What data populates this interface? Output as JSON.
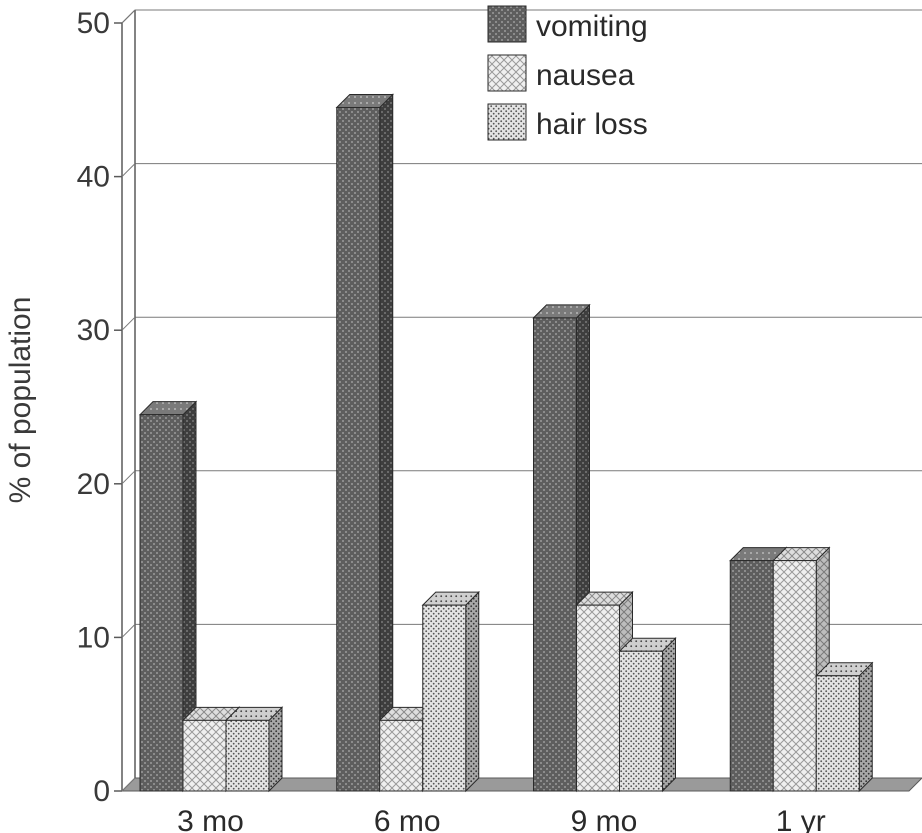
{
  "chart_data": {
    "type": "bar",
    "title": "",
    "xlabel": "",
    "ylabel": "% of population",
    "ylim": [
      0,
      50
    ],
    "yticks": [
      0,
      10,
      20,
      30,
      40,
      50
    ],
    "grid": true,
    "legend_position": "top-right",
    "style": "3d-bars-patterned",
    "categories": [
      "3 mo",
      "6 mo",
      "9 mo",
      "1 yr"
    ],
    "series": [
      {
        "name": "vomiting",
        "values": [
          24.5,
          44.5,
          30.8,
          15.0
        ],
        "color": "#6b6b6b"
      },
      {
        "name": "nausea",
        "values": [
          4.6,
          4.6,
          12.1,
          15.0
        ],
        "color": "#e6e6e6"
      },
      {
        "name": "hair loss",
        "values": [
          4.6,
          12.1,
          9.1,
          7.5
        ],
        "color": "#d0d0d0"
      }
    ]
  }
}
